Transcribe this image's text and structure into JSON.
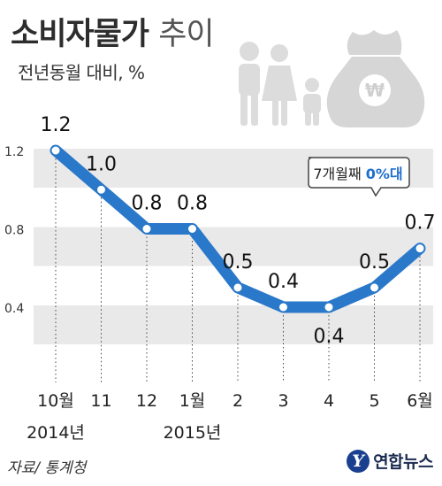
{
  "title": {
    "main": "소비자물가",
    "sub": "추이"
  },
  "subtitle": "전년동월 대비, %",
  "source": "자료/ 통계청",
  "logo": {
    "mark": "Y",
    "text": "연합뉴스"
  },
  "callout": {
    "prefix": "7개월째 ",
    "highlight": "0%대"
  },
  "illustration": [
    "family-icon",
    "money-bag-icon"
  ],
  "colors": {
    "line": "#2a78c9",
    "marker": "#ffffff",
    "band": "#e9e9e9",
    "callout_accent": "#1f6fce",
    "text": "#222222"
  },
  "chart_data": {
    "type": "line",
    "categories": [
      "10월",
      "11",
      "12",
      "1월",
      "2",
      "3",
      "4",
      "5",
      "6월"
    ],
    "year_labels": [
      "2014년",
      "",
      "",
      "2015년",
      "",
      "",
      "",
      "",
      ""
    ],
    "values": [
      1.2,
      1.0,
      0.8,
      0.8,
      0.5,
      0.4,
      0.4,
      0.5,
      0.7
    ],
    "value_labels": [
      "1.2",
      "1.0",
      "0.8",
      "0.8",
      "0.5",
      "0.4",
      "0.4",
      "0.5",
      "0.7"
    ],
    "yticks": [
      1.2,
      0.8,
      0.4
    ],
    "ytick_labels": [
      "1.2",
      "0.8",
      "0.4"
    ],
    "ylim": [
      0.2,
      1.3
    ]
  }
}
